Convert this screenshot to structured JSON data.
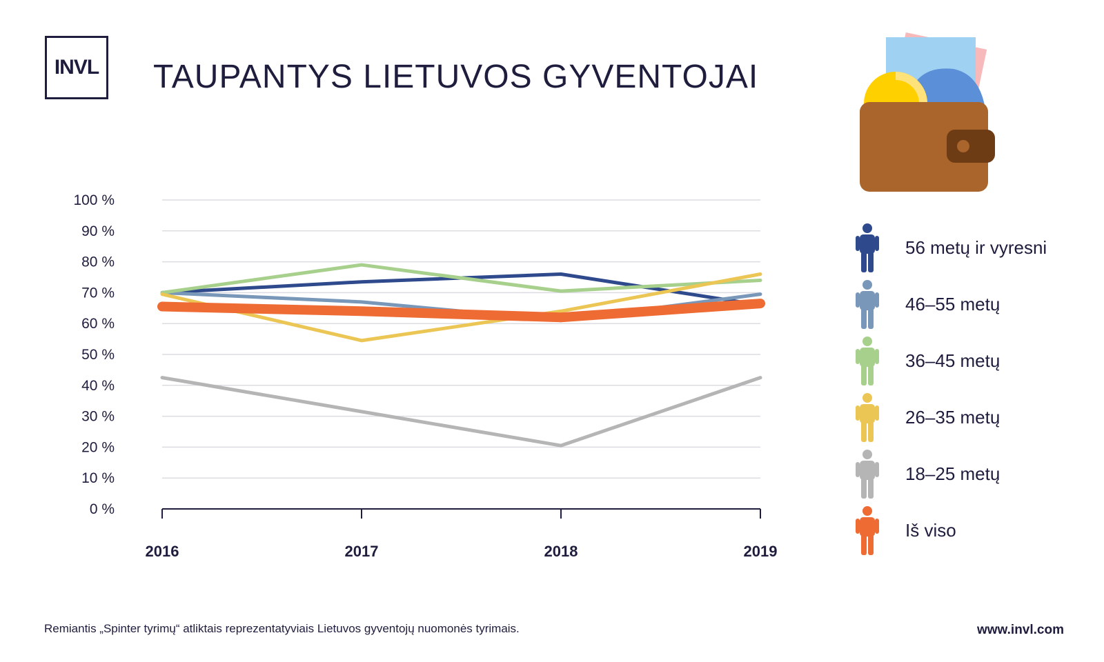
{
  "logo": {
    "text": "INVL"
  },
  "title": "TAUPANTYS LIETUVOS GYVENTOJAI",
  "chart_data": {
    "type": "line",
    "title": "TAUPANTYS LIETUVOS GYVENTOJAI",
    "x": [
      "2016",
      "2017",
      "2018",
      "2019"
    ],
    "y_ticks": [
      "0 %",
      "10 %",
      "20 %",
      "30 %",
      "40 %",
      "50 %",
      "60 %",
      "70 %",
      "80 %",
      "90 %",
      "100 %"
    ],
    "ylim": [
      0,
      100
    ],
    "grid": true,
    "legend_position": "right",
    "series": [
      {
        "name": "56 metų ir vyresni",
        "values": [
          70,
          73.5,
          76,
          66
        ],
        "color": "#2e4a8c",
        "width": 5
      },
      {
        "name": "46–55 metų",
        "values": [
          70,
          67,
          61,
          69.5
        ],
        "color": "#7997b9",
        "width": 5
      },
      {
        "name": "36–45 metų",
        "values": [
          70,
          79,
          70.5,
          74
        ],
        "color": "#a8d08d",
        "width": 5
      },
      {
        "name": "26–35 metų",
        "values": [
          69.5,
          54.5,
          64,
          76
        ],
        "color": "#ecc655",
        "width": 5
      },
      {
        "name": "18–25 metų",
        "values": [
          42.5,
          31.5,
          20.5,
          42.5
        ],
        "color": "#b5b5b5",
        "width": 5
      },
      {
        "name": "Iš viso",
        "values": [
          65.5,
          64,
          62,
          66.5
        ],
        "color": "#ee6b34",
        "width": 14
      }
    ]
  },
  "footnote": "Remiantis „Spinter tyrimų“ atliktais reprezentatyviais Lietuvos gyventojų nuomonės tyrimais.",
  "website": "www.invl.com",
  "icons": {
    "wallet": "wallet-icon",
    "person": "person-icon"
  }
}
